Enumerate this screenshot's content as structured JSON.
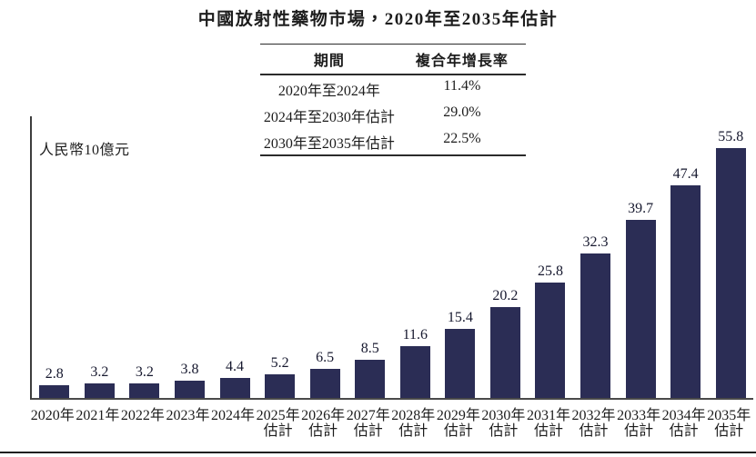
{
  "title": "中國放射性藥物市場，2020年至2035年估計",
  "cagr_table": {
    "headers": [
      "期間",
      "複合年增長率"
    ],
    "rows": [
      {
        "period": "2020年至2024年",
        "cagr": "11.4%"
      },
      {
        "period": "2024年至2030年估計",
        "cagr": "29.0%"
      },
      {
        "period": "2030年至2035年估計",
        "cagr": "22.5%"
      }
    ]
  },
  "chart_data": {
    "type": "bar",
    "title": "中國放射性藥物市場，2020年至2035年估計",
    "unit_label": "人民幣10億元",
    "categories": [
      "2020年",
      "2021年",
      "2022年",
      "2023年",
      "2024年",
      "2025年",
      "2026年",
      "2027年",
      "2028年",
      "2029年",
      "2030年",
      "2031年",
      "2032年",
      "2033年",
      "2034年",
      "2035年"
    ],
    "estimate_note": "估計",
    "estimate_start_index": 5,
    "values": [
      2.8,
      3.2,
      3.2,
      3.8,
      4.4,
      5.2,
      6.5,
      8.5,
      11.6,
      15.4,
      20.2,
      25.8,
      32.3,
      39.7,
      47.4,
      55.8
    ],
    "bar_color": "#2b2d55",
    "ylim": [
      0,
      60
    ],
    "grid": false,
    "legend": "none",
    "value_labels": "above-bars"
  }
}
